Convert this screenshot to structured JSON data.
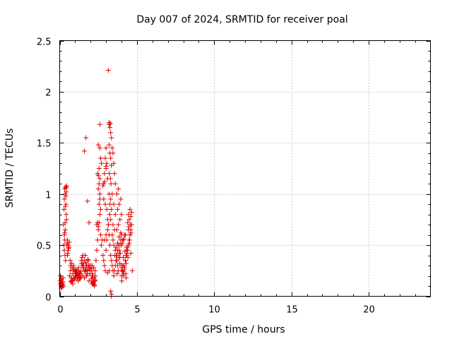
{
  "chart_data": {
    "type": "scatter",
    "title": "Day 007 of 2024, SRMTID for receiver poal",
    "xlabel": "GPS time / hours",
    "ylabel": "SRMTID / TECUs",
    "xlim": [
      0,
      24
    ],
    "ylim": [
      0,
      2.5
    ],
    "xticks": [
      0,
      5,
      10,
      15,
      20
    ],
    "yticks": [
      0,
      0.5,
      1,
      1.5,
      2,
      2.5
    ],
    "xtick_labels": [
      "0",
      "5",
      "10",
      "15",
      "20"
    ],
    "ytick_labels": [
      "0",
      "0.5",
      "1",
      "1.5",
      "2",
      "2.5"
    ],
    "grid": true,
    "marker": "plus",
    "color": "#e00000",
    "series": [
      {
        "x": [
          0.02,
          0.05,
          0.08,
          0.1,
          0.12,
          0.15,
          0.18,
          0.2,
          0.22,
          0.25,
          0.05,
          0.1,
          0.15,
          0.2,
          0.08,
          0.12,
          0.25,
          0.28,
          0.3,
          0.32,
          0.35,
          0.38,
          0.4,
          0.42,
          0.45,
          0.3,
          0.33,
          0.36,
          0.4,
          0.43,
          0.28,
          0.32,
          0.35,
          0.38,
          0.42,
          0.45,
          0.3,
          0.34,
          0.38,
          0.45,
          0.5,
          0.55,
          0.6,
          0.48,
          0.52,
          0.57,
          0.62,
          0.5,
          0.55,
          0.65,
          0.7,
          0.75,
          0.8,
          0.85,
          0.9,
          0.95,
          1.0,
          1.05,
          1.1,
          1.15,
          1.2,
          1.25,
          1.3,
          1.35,
          1.4,
          0.7,
          0.8,
          0.9,
          1.0,
          1.1,
          1.2,
          1.3,
          0.75,
          0.85,
          0.95,
          1.05,
          1.15,
          1.25,
          0.68,
          0.78,
          0.88,
          0.98,
          1.08,
          1.18,
          1.28,
          1.38,
          0.72,
          0.82,
          0.92,
          1.02,
          1.12,
          1.22,
          1.32,
          1.4,
          1.45,
          1.5,
          1.55,
          1.6,
          1.65,
          1.7,
          1.75,
          1.8,
          1.85,
          1.9,
          1.95,
          2.0,
          1.5,
          1.6,
          1.7,
          1.8,
          1.9,
          1.45,
          1.55,
          1.65,
          1.75,
          1.85,
          1.95,
          1.5,
          1.6,
          1.7,
          1.8,
          1.42,
          1.52,
          1.62,
          1.72,
          1.82,
          1.92,
          2.02,
          2.05,
          2.1,
          2.15,
          2.2,
          2.25,
          2.3,
          2.1,
          2.2,
          2.3,
          2.05,
          2.15,
          2.25,
          2.1,
          2.2,
          2.3,
          2.15,
          2.25,
          2.05,
          2.2,
          2.3,
          2.35,
          2.4,
          2.45,
          2.5,
          2.55,
          2.6,
          2.65,
          2.7,
          2.75,
          2.8,
          2.85,
          2.9,
          2.95,
          3.0,
          3.05,
          3.1,
          3.15,
          3.2,
          3.25,
          3.3,
          3.35,
          3.4,
          3.45,
          3.5,
          3.55,
          3.6,
          3.65,
          3.7,
          3.75,
          3.8,
          3.85,
          3.9,
          2.4,
          2.45,
          2.5,
          2.55,
          2.6,
          2.65,
          2.5,
          2.55,
          2.6,
          2.45,
          2.5,
          2.55,
          2.6,
          2.65,
          2.7,
          2.5,
          2.6,
          2.8,
          2.85,
          2.9,
          2.95,
          3.0,
          3.05,
          2.9,
          3.0,
          3.1,
          2.85,
          2.95,
          3.05,
          3.1,
          3.15,
          2.9,
          3.0,
          3.2,
          3.25,
          3.3,
          3.35,
          3.2,
          3.25,
          3.3,
          3.35,
          3.22,
          3.28,
          3.32,
          3.2,
          3.3,
          3.25,
          3.35,
          3.24,
          3.3,
          3.4,
          3.45,
          3.5,
          3.55,
          3.6,
          3.4,
          3.5,
          3.6,
          3.45,
          3.55,
          3.4,
          3.5,
          3.6,
          3.45,
          3.55,
          3.65,
          3.7,
          3.75,
          3.8,
          3.85,
          3.9,
          3.95,
          4.0,
          3.7,
          3.8,
          3.9,
          4.0,
          3.75,
          3.85,
          3.95,
          3.7,
          3.8,
          3.9,
          4.0,
          3.72,
          3.82,
          3.92,
          3.65,
          3.75,
          3.85,
          3.95,
          4.0,
          4.05,
          4.1,
          4.15,
          4.2,
          4.25,
          4.3,
          4.35,
          4.0,
          4.1,
          4.2,
          4.3,
          4.05,
          4.15,
          4.25,
          4.35,
          4.0,
          4.1,
          4.2,
          4.3,
          4.08,
          4.18,
          4.28,
          4.02,
          4.12,
          4.22,
          4.32,
          4.05,
          4.15,
          4.25,
          4.35,
          4.4,
          4.45,
          4.5,
          4.55,
          4.6,
          4.65,
          4.4,
          4.5,
          4.6,
          4.45,
          4.55,
          4.65,
          4.4,
          4.5,
          4.6,
          4.42,
          4.52,
          4.62,
          4.48,
          4.58,
          4.45,
          4.55,
          4.7,
          1.6,
          1.7,
          1.8,
          1.9,
          3.15,
          3.2,
          3.28,
          3.3,
          3.35,
          3.35,
          2.6,
          3.0,
          3.1,
          3.2
        ],
        "y": [
          0.15,
          0.12,
          0.1,
          0.13,
          0.16,
          0.11,
          0.14,
          0.12,
          0.18,
          0.1,
          0.2,
          0.08,
          0.09,
          0.14,
          0.17,
          0.12,
          0.7,
          0.85,
          0.95,
          1.05,
          1.0,
          1.07,
          0.9,
          0.8,
          0.75,
          0.6,
          0.55,
          0.65,
          0.98,
          1.02,
          0.5,
          0.62,
          0.72,
          0.88,
          1.06,
          1.08,
          0.45,
          0.4,
          0.35,
          0.5,
          0.55,
          0.45,
          0.48,
          0.52,
          0.42,
          0.47,
          0.53,
          0.4,
          0.5,
          0.2,
          0.25,
          0.18,
          0.15,
          0.22,
          0.3,
          0.17,
          0.2,
          0.25,
          0.22,
          0.18,
          0.15,
          0.2,
          0.23,
          0.18,
          0.2,
          0.3,
          0.28,
          0.26,
          0.24,
          0.22,
          0.2,
          0.18,
          0.15,
          0.12,
          0.16,
          0.19,
          0.21,
          0.24,
          0.35,
          0.32,
          0.28,
          0.26,
          0.23,
          0.2,
          0.17,
          0.25,
          0.14,
          0.16,
          0.18,
          0.22,
          0.26,
          0.28,
          0.22,
          0.35,
          0.3,
          0.32,
          0.28,
          0.35,
          0.4,
          0.33,
          0.3,
          0.25,
          0.35,
          0.28,
          0.22,
          0.3,
          0.2,
          0.18,
          0.25,
          0.22,
          0.15,
          0.38,
          0.3,
          0.26,
          0.2,
          0.3,
          0.25,
          0.4,
          0.35,
          0.3,
          0.26,
          0.32,
          0.28,
          0.24,
          0.2,
          0.36,
          0.3,
          0.27,
          0.15,
          0.12,
          0.18,
          0.14,
          0.1,
          0.16,
          0.2,
          0.12,
          0.15,
          0.25,
          0.22,
          0.18,
          0.3,
          0.28,
          0.25,
          0.13,
          0.11,
          0.17,
          0.14,
          0.2,
          0.35,
          0.45,
          0.55,
          0.65,
          0.72,
          0.8,
          0.6,
          0.5,
          0.55,
          0.4,
          0.35,
          0.3,
          0.25,
          0.45,
          0.55,
          0.65,
          0.7,
          0.6,
          0.5,
          0.4,
          0.35,
          0.3,
          0.25,
          0.2,
          0.25,
          0.3,
          0.35,
          0.4,
          0.45,
          0.5,
          0.42,
          0.38,
          0.7,
          0.72,
          0.68,
          0.9,
          0.95,
          0.85,
          1.05,
          1.1,
          1.0,
          1.2,
          1.18,
          1.25,
          1.15,
          1.35,
          1.3,
          1.48,
          1.45,
          1.08,
          1.1,
          1.12,
          1.35,
          1.45,
          1.3,
          1.2,
          1.25,
          1.15,
          0.95,
          0.9,
          0.85,
          0.75,
          0.7,
          0.55,
          0.6,
          1.7,
          1.65,
          1.6,
          1.55,
          1.48,
          1.4,
          1.35,
          1.28,
          1.2,
          1.15,
          1.1,
          1.0,
          0.95,
          0.9,
          0.85,
          0.8,
          0.75,
          1.45,
          1.4,
          1.3,
          1.2,
          1.1,
          1.0,
          0.9,
          0.8,
          0.7,
          0.65,
          0.6,
          0.5,
          0.45,
          0.55,
          0.4,
          0.4,
          0.35,
          0.3,
          0.25,
          0.45,
          0.5,
          0.55,
          0.6,
          0.65,
          0.7,
          0.75,
          0.8,
          0.85,
          0.9,
          0.95,
          1.0,
          1.05,
          0.32,
          0.28,
          0.22,
          0.38,
          0.42,
          0.48,
          0.52,
          0.58,
          0.62,
          0.3,
          0.25,
          0.2,
          0.22,
          0.28,
          0.35,
          0.4,
          0.45,
          0.5,
          0.55,
          0.6,
          0.18,
          0.25,
          0.3,
          0.35,
          0.42,
          0.2,
          0.24,
          0.28,
          0.32,
          0.3,
          0.26,
          0.22,
          0.15,
          0.38,
          0.44,
          0.48,
          0.52,
          0.56,
          0.6,
          0.4,
          0.45,
          0.5,
          0.55,
          0.6,
          0.65,
          0.7,
          0.72,
          0.75,
          0.78,
          0.8,
          0.85,
          0.82,
          0.48,
          0.52,
          0.42,
          0.38,
          0.55,
          0.62,
          0.68,
          0.7,
          0.65,
          0.6,
          0.25,
          1.42,
          1.55,
          0.93,
          0.72,
          2.21,
          1.68,
          1.69,
          0.05,
          0.02,
          0.0,
          1.68,
          1.27,
          0.23,
          0.25
        ]
      }
    ]
  }
}
